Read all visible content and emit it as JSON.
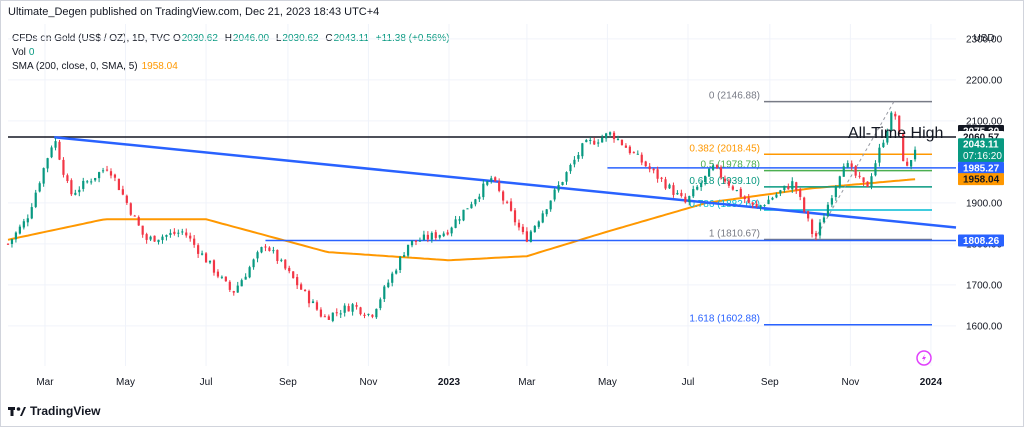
{
  "header": {
    "publish_line": "Ultimate_Degen published on TradingView.com, Dec 21, 2023 18:43 UTC+4"
  },
  "legend": {
    "symbol": "CFDs on Gold (US$ / OZ), 1D, TVC",
    "open_label": "O",
    "open": "2030.62",
    "high_label": "H",
    "high": "2046.00",
    "low_label": "L",
    "low": "2030.62",
    "close_label": "C",
    "close": "2043.11",
    "change": "+11.38 (+0.56%)",
    "vol_label": "Vol",
    "vol": "0",
    "sma_label": "SMA (200, close, 0, SMA, 5)",
    "sma": "1958.04"
  },
  "price_axis": {
    "currency": "USD",
    "ticks": [
      "2300.00",
      "2200.00",
      "2100.00",
      "1900.00",
      "1800.00",
      "1700.00",
      "1600.00"
    ],
    "badges": [
      {
        "value": 2075.3,
        "label": "2075.30",
        "bg": "#131722",
        "fg": "#ffffff"
      },
      {
        "value": 2060.57,
        "label": "2060.57",
        "bg": "#ffffff",
        "fg": "#131722"
      },
      {
        "value": 2043.11,
        "label": "2043.11",
        "sub": "07:16:20",
        "bg": "#089981",
        "fg": "#ffffff"
      },
      {
        "value": 1985.27,
        "label": "1985.27",
        "bg": "#2962ff",
        "fg": "#ffffff"
      },
      {
        "value": 1958.04,
        "label": "1958.04",
        "bg": "#ff9800",
        "fg": "#131722"
      },
      {
        "value": 1808.26,
        "label": "1808.26",
        "bg": "#2962ff",
        "fg": "#ffffff"
      }
    ]
  },
  "time_axis": {
    "labels": [
      "Mar",
      "May",
      "Jul",
      "Sep",
      "Nov",
      "2023",
      "Mar",
      "May",
      "Jul",
      "Sep",
      "Nov",
      "2024"
    ],
    "bold_labels": [
      "2023",
      "2024"
    ]
  },
  "annotations": {
    "all_time_high": "All-Time High"
  },
  "fib_levels": [
    {
      "label": "0 (2146.88)",
      "value": 2146.88,
      "color": "#787b86"
    },
    {
      "label": "0.382 (2018.45)",
      "value": 2018.45,
      "color": "#ff9800"
    },
    {
      "label": "0.5 (1978.78)",
      "value": 1978.78,
      "color": "#4caf50"
    },
    {
      "label": "0.618 (1939.10)",
      "value": 1939.1,
      "color": "#089981"
    },
    {
      "label": "0.786 (1882.62)",
      "value": 1882.62,
      "color": "#00bcd4"
    },
    {
      "label": "1 (1810.67)",
      "value": 1810.67,
      "color": "#787b86"
    },
    {
      "label": "1.618 (1602.88)",
      "value": 1602.88,
      "color": "#2962ff"
    }
  ],
  "horizontal_levels": [
    {
      "value": 2060.57,
      "color": "#131722"
    },
    {
      "value": 1985.27,
      "color": "#2962ff"
    },
    {
      "value": 1808.26,
      "color": "#2962ff"
    }
  ],
  "colors": {
    "up": "#089981",
    "down": "#f23645",
    "sma": "#ff9800",
    "trendline": "#2962ff",
    "grid": "#f0f3fa"
  },
  "footer": {
    "brand": "TradingView"
  },
  "chart_data": {
    "type": "candlestick",
    "title": "CFDs on Gold (US$ / OZ), 1D, TVC",
    "ylabel": "USD",
    "ylim": [
      1560,
      2330
    ],
    "x_range": [
      "2022-02-01",
      "2024-01-20"
    ],
    "y_scale": "linear",
    "grid": true,
    "price_path": [
      [
        "2022-02-01",
        1800
      ],
      [
        "2022-02-15",
        1860
      ],
      [
        "2022-03-08",
        2060
      ],
      [
        "2022-03-20",
        1920
      ],
      [
        "2022-04-18",
        1990
      ],
      [
        "2022-05-16",
        1810
      ],
      [
        "2022-06-14",
        1830
      ],
      [
        "2022-07-21",
        1680
      ],
      [
        "2022-08-15",
        1800
      ],
      [
        "2022-09-28",
        1620
      ],
      [
        "2022-10-20",
        1650
      ],
      [
        "2022-11-03",
        1625
      ],
      [
        "2022-12-01",
        1800
      ],
      [
        "2022-12-30",
        1830
      ],
      [
        "2023-02-02",
        1960
      ],
      [
        "2023-02-28",
        1810
      ],
      [
        "2023-04-13",
        2040
      ],
      [
        "2023-05-04",
        2070
      ],
      [
        "2023-06-29",
        1900
      ],
      [
        "2023-07-20",
        1985
      ],
      [
        "2023-08-21",
        1885
      ],
      [
        "2023-09-19",
        1950
      ],
      [
        "2023-10-05",
        1810
      ],
      [
        "2023-10-27",
        2000
      ],
      [
        "2023-11-13",
        1935
      ],
      [
        "2023-12-04",
        2130
      ],
      [
        "2023-12-13",
        1975
      ],
      [
        "2023-12-21",
        2043
      ]
    ],
    "sma_200_path": [
      [
        "2022-02-01",
        1810
      ],
      [
        "2022-04-15",
        1860
      ],
      [
        "2022-07-01",
        1860
      ],
      [
        "2022-10-01",
        1780
      ],
      [
        "2023-01-01",
        1760
      ],
      [
        "2023-03-01",
        1770
      ],
      [
        "2023-05-01",
        1830
      ],
      [
        "2023-07-15",
        1900
      ],
      [
        "2023-10-01",
        1935
      ],
      [
        "2023-12-21",
        1958.04
      ]
    ],
    "trendline": [
      [
        "2022-03-08",
        2060
      ],
      [
        "2024-01-20",
        1840
      ]
    ],
    "fib_retracement": {
      "from": [
        "2023-10-05",
        1810.67
      ],
      "to": [
        "2023-12-04",
        2146.88
      ]
    }
  }
}
